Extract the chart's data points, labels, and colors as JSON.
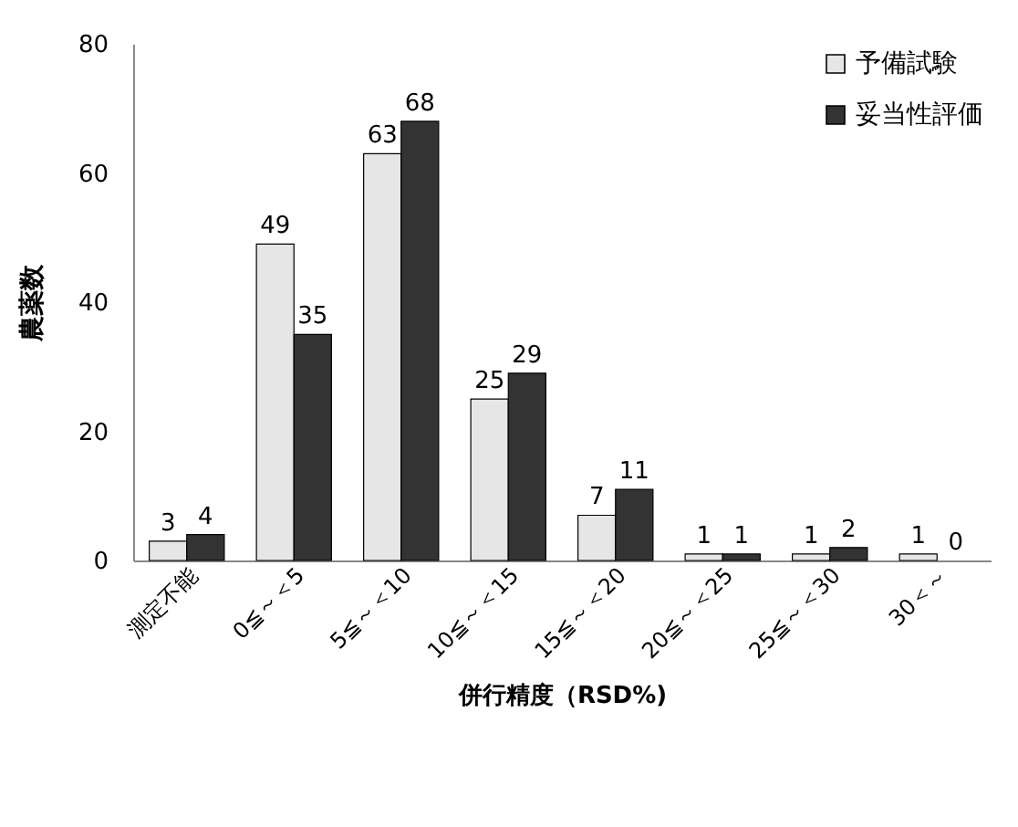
{
  "chart_data": {
    "type": "bar",
    "xlabel": "併行精度（RSD%)",
    "ylabel": "農薬数",
    "categories": [
      "測定不能",
      "0≦～＜5",
      "5≦～＜10",
      "10≦～＜15",
      "15≦～＜20",
      "20≦～＜25",
      "25≦～＜30",
      "30＜～"
    ],
    "series": [
      {
        "name": "予備試験",
        "color": "#e6e6e6",
        "values": [
          3,
          49,
          63,
          25,
          7,
          1,
          1,
          1
        ]
      },
      {
        "name": "妥当性評価",
        "color": "#333333",
        "values": [
          4,
          35,
          68,
          29,
          11,
          1,
          2,
          0
        ]
      }
    ],
    "ylim": [
      0,
      80
    ],
    "yticks": [
      0,
      20,
      40,
      60,
      80
    ],
    "data_labels": true,
    "legend": "top right",
    "grid": false
  }
}
